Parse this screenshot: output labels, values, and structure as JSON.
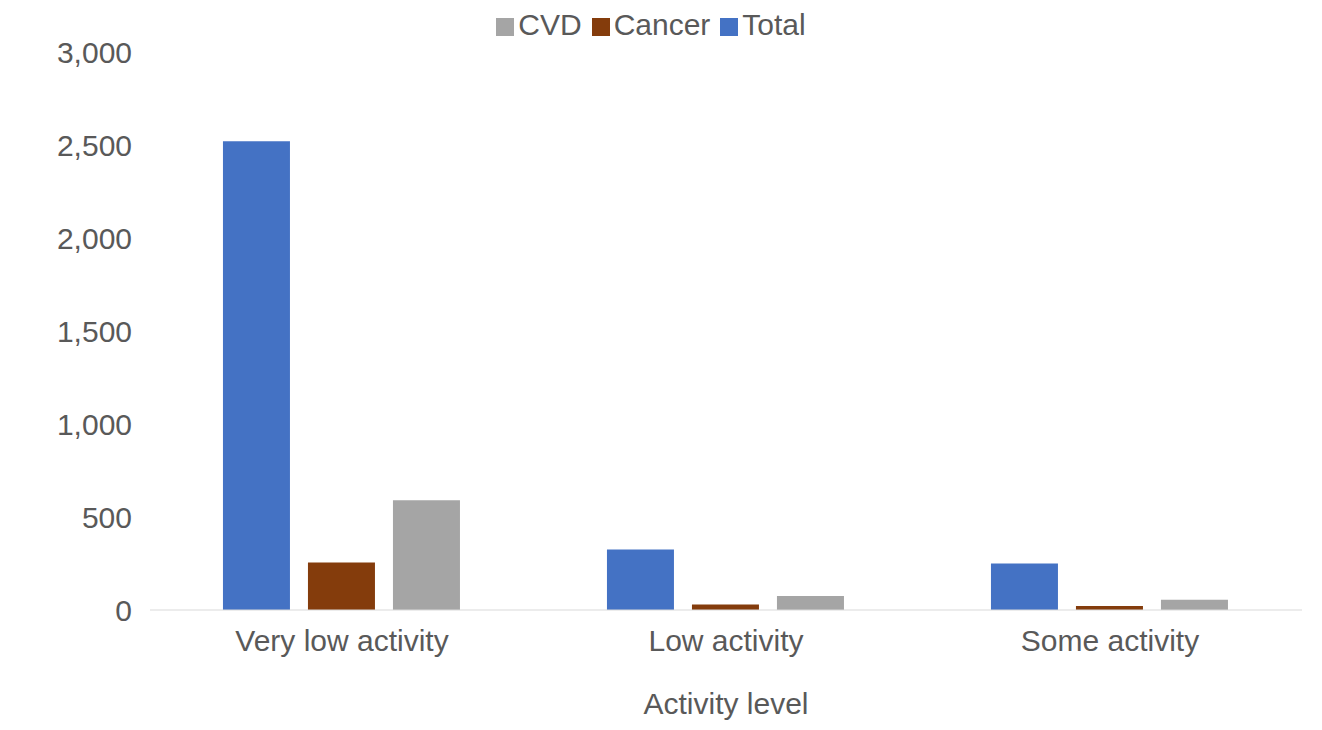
{
  "chart_data": {
    "type": "bar",
    "x_label": "Activity level",
    "categories": [
      "Very low activity",
      "Low activity",
      "Some activity"
    ],
    "series": [
      {
        "name": "Total",
        "color": "#4472c4",
        "values": [
          2520,
          325,
          250
        ]
      },
      {
        "name": "Cancer",
        "color": "#843c0c",
        "values": [
          255,
          30,
          22
        ]
      },
      {
        "name": "CVD",
        "color": "#a5a5a5",
        "values": [
          590,
          75,
          55
        ]
      }
    ],
    "ylim": [
      0,
      3000
    ],
    "yticks": [
      0,
      500,
      {
        "value": 1000,
        "label": "1,000"
      },
      {
        "value": 1500,
        "label": "1,500"
      },
      {
        "value": 2000,
        "label": "2,000"
      },
      {
        "value": 2500,
        "label": "2,500"
      },
      {
        "value": 3000,
        "label": "3,000"
      }
    ],
    "grid": false,
    "legend": "top"
  }
}
